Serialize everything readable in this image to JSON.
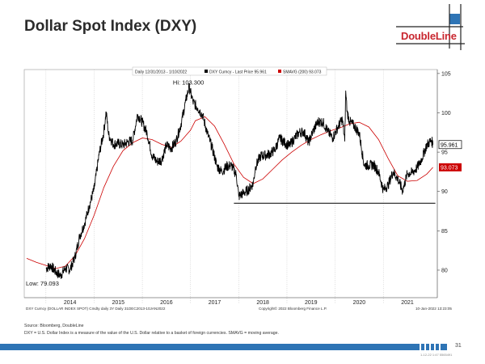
{
  "page": {
    "title": "Dollar Spot Index (DXY)",
    "logo": "DoubleLine",
    "source": "Source: Bloomberg, DoubleLine",
    "note": "DXY = U.S. Dollar Index is a measure of the value of the U.S. Dollar relative to a basket of foreign currencies. SMAVG = moving average.",
    "page_number": "31",
    "stamp": "1-12-22 1:47 5565491"
  },
  "chart_data": {
    "type": "line",
    "title": "Dollar Spot Index (DXY)",
    "legend_header": "Daily 12/31/2013 - 1/10/2022",
    "legend": [
      {
        "label": "DXY Curncy - Last Price 95.961",
        "color": "#000000"
      },
      {
        "label": "SMAVG (200) 93.073",
        "color": "#cc0000"
      }
    ],
    "xlim": [
      2013.55,
      2022.12
    ],
    "ylim": [
      76.5,
      105.5
    ],
    "x_ticks": [
      "2014",
      "2015",
      "2016",
      "2017",
      "2018",
      "2019",
      "2020",
      "2021"
    ],
    "y_ticks": [
      80,
      85,
      90,
      95,
      100,
      105
    ],
    "support_level": 88.5,
    "support_range": [
      2017.9,
      2022.08
    ],
    "annotations": [
      {
        "text": "Hi: 103.300",
        "x": 2016.97,
        "y": 103.3
      },
      {
        "text": "Low: 79.093",
        "x": 2014.2,
        "y": 79.093
      }
    ],
    "last_price": {
      "label": "95.961",
      "value": 95.961,
      "color": "#000000"
    },
    "sma_last": {
      "label": "93.073",
      "value": 93.073,
      "color": "#cc0000"
    },
    "footer_left": "DXY Curncy (DOLLAR INDEX SPOT) Cmdty daily 3Y  Daily 31DEC2013-10JAN2022",
    "footer_center": "Copyright© 2022 Bloomberg Finance L.P.",
    "footer_right": "10-Jan-2022 13:23:05",
    "series": [
      {
        "name": "DXY Curncy - Last Price",
        "color": "#000000",
        "x": [
          2014.0,
          2014.1,
          2014.2,
          2014.3,
          2014.4,
          2014.5,
          2014.6,
          2014.7,
          2014.8,
          2014.9,
          2015.0,
          2015.1,
          2015.2,
          2015.25,
          2015.3,
          2015.4,
          2015.5,
          2015.6,
          2015.7,
          2015.8,
          2015.9,
          2016.0,
          2016.1,
          2016.2,
          2016.3,
          2016.4,
          2016.5,
          2016.6,
          2016.7,
          2016.8,
          2016.9,
          2016.97,
          2017.05,
          2017.15,
          2017.25,
          2017.35,
          2017.45,
          2017.55,
          2017.65,
          2017.75,
          2017.85,
          2017.95,
          2018.0,
          2018.1,
          2018.2,
          2018.3,
          2018.35,
          2018.45,
          2018.55,
          2018.65,
          2018.75,
          2018.85,
          2018.95,
          2019.05,
          2019.15,
          2019.25,
          2019.35,
          2019.45,
          2019.55,
          2019.65,
          2019.75,
          2019.85,
          2019.95,
          2020.05,
          2020.15,
          2020.2,
          2020.22,
          2020.25,
          2020.3,
          2020.4,
          2020.5,
          2020.6,
          2020.7,
          2020.8,
          2020.9,
          2021.0,
          2021.1,
          2021.2,
          2021.3,
          2021.4,
          2021.5,
          2021.6,
          2021.7,
          2021.8,
          2021.9,
          2022.0,
          2022.03
        ],
        "y": [
          80.2,
          80.6,
          79.8,
          79.3,
          80.2,
          80.1,
          81.6,
          84.3,
          85.9,
          88.2,
          90.3,
          94.6,
          97.6,
          100.1,
          97.2,
          96.0,
          96.1,
          95.9,
          96.3,
          96.5,
          99.8,
          98.8,
          97.4,
          94.6,
          93.8,
          94.0,
          95.9,
          95.5,
          96.4,
          98.5,
          101.5,
          103.3,
          101.4,
          100.6,
          99.7,
          97.4,
          95.5,
          93.2,
          92.5,
          93.2,
          93.3,
          92.1,
          89.4,
          89.8,
          90.2,
          91.0,
          93.2,
          94.5,
          94.6,
          94.8,
          95.3,
          96.8,
          96.2,
          95.8,
          96.7,
          97.5,
          97.6,
          96.2,
          97.8,
          98.9,
          98.8,
          97.6,
          96.8,
          98.1,
          99.2,
          96.4,
          102.8,
          100.1,
          98.9,
          98.3,
          97.4,
          93.4,
          93.3,
          93.4,
          92.5,
          90.2,
          90.8,
          92.5,
          91.6,
          90.1,
          92.3,
          92.4,
          93.0,
          94.2,
          95.9,
          96.5,
          95.96
        ]
      },
      {
        "name": "SMAVG (200)",
        "color": "#cc0000",
        "x": [
          2013.6,
          2013.8,
          2014.0,
          2014.2,
          2014.4,
          2014.6,
          2014.8,
          2015.0,
          2015.2,
          2015.4,
          2015.6,
          2015.8,
          2016.0,
          2016.2,
          2016.4,
          2016.6,
          2016.8,
          2017.0,
          2017.1,
          2017.3,
          2017.5,
          2017.7,
          2017.9,
          2018.1,
          2018.3,
          2018.5,
          2018.7,
          2018.9,
          2019.1,
          2019.3,
          2019.5,
          2019.7,
          2019.9,
          2020.1,
          2020.3,
          2020.5,
          2020.7,
          2020.9,
          2021.1,
          2021.3,
          2021.5,
          2021.7,
          2021.9,
          2022.03
        ],
        "y": [
          81.5,
          81.0,
          80.6,
          80.2,
          80.5,
          81.8,
          84.0,
          87.0,
          90.5,
          93.2,
          95.2,
          96.2,
          96.8,
          96.6,
          96.0,
          95.6,
          96.4,
          97.8,
          99.0,
          99.5,
          98.3,
          96.0,
          93.5,
          91.8,
          91.0,
          91.6,
          92.8,
          94.0,
          95.0,
          95.9,
          96.6,
          97.2,
          97.7,
          98.1,
          98.6,
          98.8,
          98.2,
          96.6,
          94.2,
          92.0,
          91.3,
          91.4,
          92.2,
          93.07
        ]
      }
    ]
  }
}
